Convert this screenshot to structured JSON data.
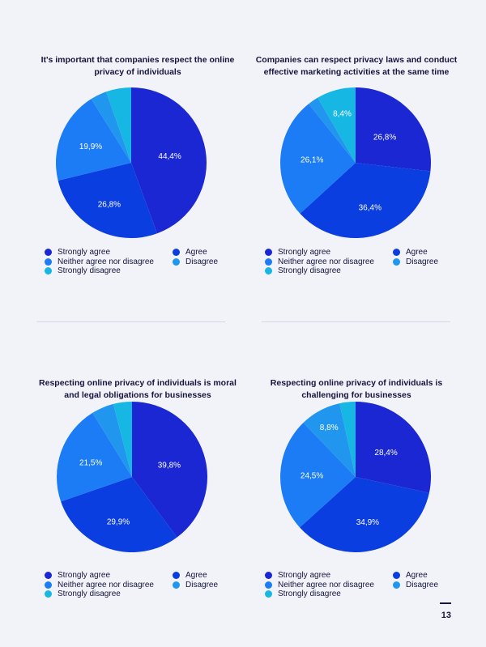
{
  "chart_data": [
    {
      "type": "pie",
      "title": "It's important that companies respect the online privacy of individuals",
      "categories": [
        "Strongly agree",
        "Agree",
        "Neither agree nor disagree",
        "Disagree",
        "Strongly disagree"
      ],
      "values": [
        44.4,
        26.8,
        19.9,
        3.5,
        5.4
      ],
      "labels": [
        "44,4%",
        "26,8%",
        "19,9%",
        "",
        ""
      ],
      "legend": "bottom"
    },
    {
      "type": "pie",
      "title": "Companies can respect privacy laws and conduct effective marketing activities at the same time",
      "categories": [
        "Strongly agree",
        "Agree",
        "Neither agree nor disagree",
        "Disagree",
        "Strongly disagree"
      ],
      "values": [
        26.8,
        36.4,
        26.1,
        2.3,
        8.4
      ],
      "labels": [
        "26,8%",
        "36,4%",
        "26,1%",
        "",
        "8,4%"
      ],
      "legend": "bottom"
    },
    {
      "type": "pie",
      "title": "Respecting online privacy of individuals is moral and legal obligations for businesses",
      "categories": [
        "Strongly agree",
        "Agree",
        "Neither agree nor disagree",
        "Disagree",
        "Strongly disagree"
      ],
      "values": [
        39.8,
        29.9,
        21.5,
        4.8,
        4.0
      ],
      "labels": [
        "39,8%",
        "29,9%",
        "21,5%",
        "",
        ""
      ],
      "legend": "bottom"
    },
    {
      "type": "pie",
      "title": "Respecting online privacy of individuals is challenging for businesses",
      "categories": [
        "Strongly agree",
        "Agree",
        "Neither agree nor disagree",
        "Disagree",
        "Strongly disagree"
      ],
      "values": [
        28.4,
        34.9,
        24.5,
        8.8,
        3.4
      ],
      "labels": [
        "28,4%",
        "34,9%",
        "24,5%",
        "8,8%",
        ""
      ],
      "legend": "bottom"
    }
  ],
  "colors": {
    "Strongly agree": "#1a27d3",
    "Agree": "#0b3ee0",
    "Neither agree nor disagree": "#1b7cf5",
    "Disagree": "#2196ee",
    "Strongly disagree": "#16b7e3"
  },
  "page_number": "13"
}
